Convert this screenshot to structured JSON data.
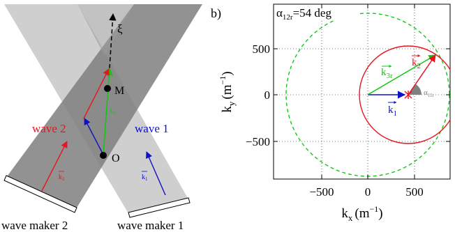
{
  "left_panel": {
    "wave_maker_2": "wave maker 2",
    "wave_maker_1": "wave maker 1",
    "wave_2_label": "wave 2",
    "wave_1_label": "wave 1",
    "k2_label": "k",
    "k2_sub": "2",
    "k1_label": "k",
    "k1_sub": "1",
    "point_O": "O",
    "point_M": "M",
    "xi_label": "ξ",
    "k3r_small_label": "k",
    "k3r_small_sub": "3r"
  },
  "right_panel": {
    "panel_letter": "b)",
    "alpha_title": "α",
    "alpha_title_sub": "12r",
    "alpha_title_value": "=54 deg",
    "x_ticks": [
      "−500",
      "0",
      "500"
    ],
    "y_ticks": [
      "500",
      "0",
      "−500"
    ],
    "xlabel": "k",
    "xlabel_sub": "x",
    "xlabel_unit": "(m",
    "xlabel_exp": "−1",
    "xlabel_close": ")",
    "ylabel": "k",
    "ylabel_sub": "y",
    "ylabel_unit": "(m",
    "ylabel_exp": "−1",
    "ylabel_close": ")",
    "k3r_label": "k",
    "k3r_sub": "3r",
    "k2_label": "k",
    "k2_sub": "2",
    "k1_label": "k",
    "k1_sub": "1",
    "alpha_small": "α",
    "alpha_small_sub": "12r"
  },
  "colors": {
    "red": "#e8141e",
    "blue": "#1010c8",
    "green": "#10c810",
    "band_dark": "#8a8a8a",
    "band_light": "#c8c8c8"
  }
}
